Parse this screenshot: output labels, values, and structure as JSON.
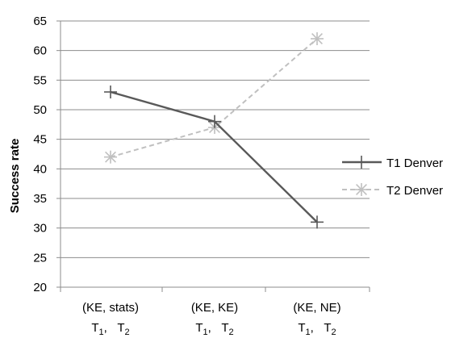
{
  "chart_data": {
    "type": "line",
    "title": "",
    "xlabel": "",
    "ylabel": "Success rate",
    "ylim": [
      20,
      65
    ],
    "yticks": [
      20,
      25,
      30,
      35,
      40,
      45,
      50,
      55,
      60,
      65
    ],
    "grid": true,
    "legend_position": "right",
    "categories": [
      {
        "label": "(KE, stats)",
        "sub_main": "T",
        "sub_1": "1",
        "sub_sep": ",",
        "sub_main2": "T",
        "sub_2": "2"
      },
      {
        "label": "(KE, KE)",
        "sub_main": "T",
        "sub_1": "1",
        "sub_sep": ",",
        "sub_main2": "T",
        "sub_2": "2"
      },
      {
        "label": "(KE, NE)",
        "sub_main": "T",
        "sub_1": "1",
        "sub_sep": ",",
        "sub_main2": "T",
        "sub_2": "2"
      }
    ],
    "series": [
      {
        "name": "T1 Denver",
        "values": [
          53,
          48,
          31
        ],
        "color": "#595959",
        "marker": "plus",
        "dash": "solid"
      },
      {
        "name": "T2 Denver",
        "values": [
          42,
          47,
          62
        ],
        "color": "#c0c0c0",
        "marker": "star",
        "dash": "dashed"
      }
    ]
  }
}
